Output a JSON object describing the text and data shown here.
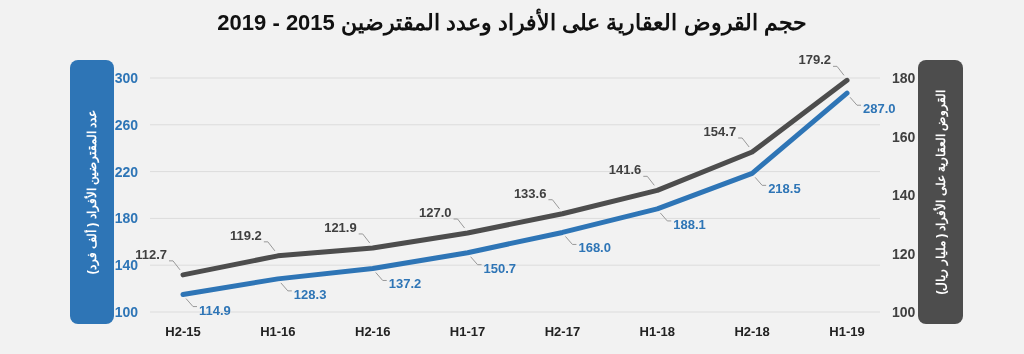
{
  "chart_data": {
    "type": "line",
    "title": "حجم القروض العقارية على الأفراد وعدد المقترضين 2015 - 2019",
    "ylabel": "عدد المقترضين الأفراد ( ألف فرد)",
    "y2label": "القروض العقارية على الأفراد ( مليار ريال)",
    "categories": [
      "H2-15",
      "H1-16",
      "H2-16",
      "H1-17",
      "H2-17",
      "H1-18",
      "H2-18",
      "H1-19"
    ],
    "series": [
      {
        "color": "#2e75b6",
        "values": [
          114.9,
          128.3,
          137.2,
          150.7,
          168.0,
          188.1,
          218.5,
          287.0
        ],
        "value_labels": [
          "114.9",
          "128.3",
          "137.2",
          "150.7",
          "168.0",
          "188.1",
          "218.5",
          "287.0"
        ]
      },
      {
        "color": "#4d4d4d",
        "axis": "y2",
        "values": [
          112.7,
          119.2,
          121.9,
          127.0,
          133.6,
          141.6,
          154.7,
          179.2
        ],
        "value_labels": [
          "112.7",
          "119.2",
          "121.9",
          "127.0",
          "133.6",
          "141.6",
          "154.7",
          "179.2"
        ]
      }
    ],
    "ylim": [
      100,
      300
    ],
    "yticks": [
      100,
      140,
      180,
      220,
      260,
      300
    ],
    "y2lim": [
      100,
      180
    ],
    "y2ticks": [
      100,
      120,
      140,
      160,
      180
    ],
    "grid": "y",
    "marker": "none",
    "line_style": "solid"
  }
}
